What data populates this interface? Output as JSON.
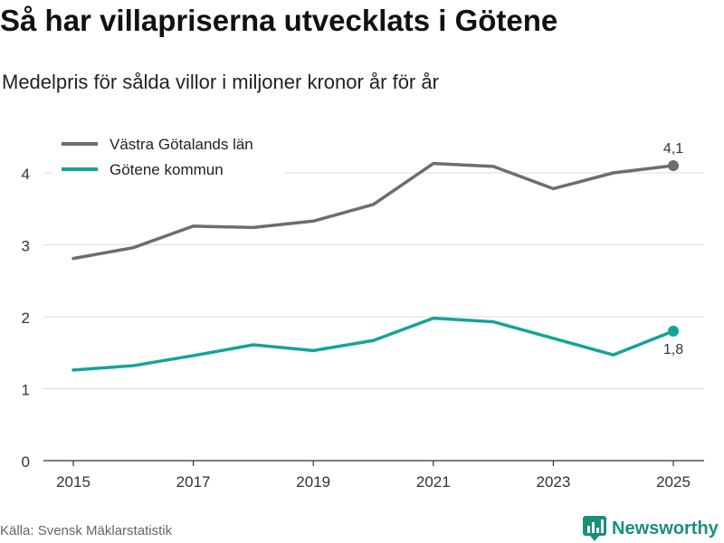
{
  "title": "Så har villapriserna utvecklats i Götene",
  "subtitle": "Medelpris för sålda villor i miljoner kronor år för år",
  "source": "Källa: Svensk Mäklarstatistik",
  "brand": {
    "name": "Newsworthy",
    "icon": "newsworthy-logo-icon",
    "color": "#1a8f7a"
  },
  "chart_data": {
    "type": "line",
    "title": "Så har villapriserna utvecklats i Götene",
    "subtitle": "Medelpris för sålda villor i miljoner kronor år för år",
    "xlabel": "",
    "ylabel": "",
    "x": [
      2015,
      2016,
      2017,
      2018,
      2019,
      2020,
      2021,
      2022,
      2023,
      2024,
      2025
    ],
    "x_ticks": [
      "2015",
      "2017",
      "2019",
      "2021",
      "2023",
      "2025"
    ],
    "y_ticks": [
      "0",
      "1",
      "2",
      "3",
      "4"
    ],
    "ylim": [
      0,
      4.2
    ],
    "grid": true,
    "legend_position": "top-left",
    "series": [
      {
        "name": "Västra Götalands län",
        "color": "#6d6d6d",
        "values": [
          2.81,
          2.96,
          3.26,
          3.24,
          3.33,
          3.56,
          4.13,
          4.09,
          3.78,
          4.0,
          4.1
        ],
        "end_label": "4,1",
        "end_label_position": "above"
      },
      {
        "name": "Götene kommun",
        "color": "#14a39a",
        "values": [
          1.26,
          1.32,
          1.46,
          1.61,
          1.53,
          1.67,
          1.98,
          1.93,
          1.7,
          1.47,
          1.8
        ],
        "end_label": "1,8",
        "end_label_position": "below"
      }
    ]
  }
}
